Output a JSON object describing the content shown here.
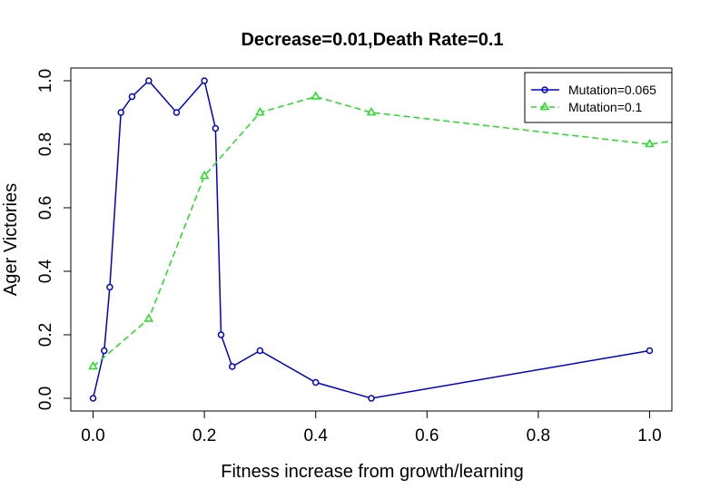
{
  "chart_data": {
    "type": "line",
    "title": "Decrease=0.01,Death Rate=0.1",
    "xlabel": "Fitness increase from growth/learning",
    "ylabel": "Ager Victories",
    "xlim": [
      -0.04,
      1.04
    ],
    "ylim": [
      -0.04,
      1.04
    ],
    "xticks": [
      0.0,
      0.2,
      0.4,
      0.6,
      0.8,
      1.0
    ],
    "xtick_labels": [
      "0.0",
      "0.2",
      "0.4",
      "0.6",
      "0.8",
      "1.0"
    ],
    "yticks": [
      0.0,
      0.2,
      0.4,
      0.6,
      0.8,
      1.0
    ],
    "ytick_labels": [
      "0.0",
      "0.2",
      "0.4",
      "0.6",
      "0.8",
      "1.0"
    ],
    "grid": false,
    "legend_position": "top-right",
    "series": [
      {
        "name": "Mutation=0.065",
        "color": "#0000CD",
        "line": "solid",
        "marker": "circle",
        "x": [
          0.0,
          0.02,
          0.03,
          0.05,
          0.07,
          0.1,
          0.15,
          0.2,
          0.22,
          0.23,
          0.25,
          0.3,
          0.4,
          0.5,
          1.0
        ],
        "y": [
          0.0,
          0.15,
          0.35,
          0.9,
          0.95,
          1.0,
          0.9,
          1.0,
          0.85,
          0.2,
          0.1,
          0.15,
          0.05,
          0.0,
          0.15
        ]
      },
      {
        "name": "Mutation=0.1",
        "color": "#22DD22",
        "line": "dashed",
        "marker": "triangle",
        "x": [
          0.0,
          0.1,
          0.2,
          0.3,
          0.4,
          0.5,
          1.0,
          1.04
        ],
        "y": [
          0.1,
          0.25,
          0.7,
          0.9,
          0.95,
          0.9,
          0.8,
          0.81
        ],
        "marker_count": 7
      }
    ]
  }
}
